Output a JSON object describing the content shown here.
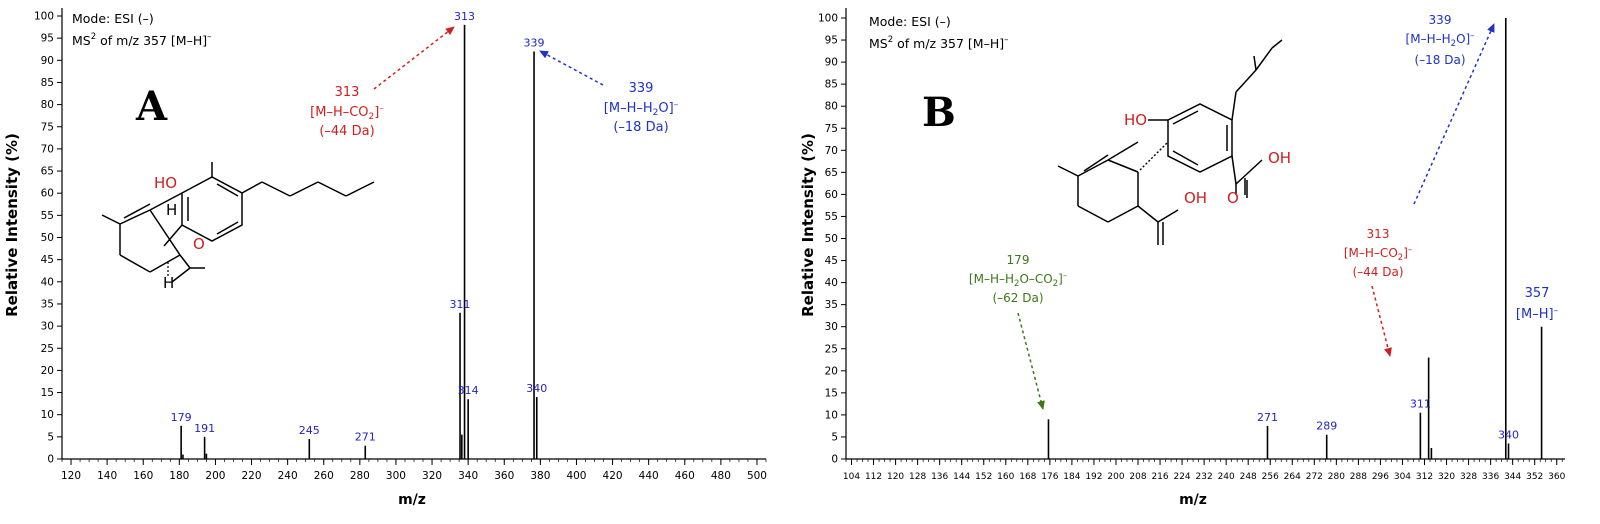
{
  "colors": {
    "axis": "#000000",
    "peak": "#000000",
    "peak_label": "#2323c8",
    "red": "#d21e1e",
    "blue": "#1e32c8",
    "green": "#3c7814"
  },
  "chart_data": [
    {
      "type": "bar",
      "panel_letter": "A",
      "ylabel": "Relative Intensity (%)",
      "xlabel": "m/z",
      "mode_label": "Mode: ESI (–)",
      "ms2_label": {
        "prefix": "MS",
        "sup": "2",
        "main": " of m/z  357 [M–H]",
        "sup2": "–"
      },
      "xlim": [
        115,
        505
      ],
      "ylim": [
        0,
        100
      ],
      "xticks": [
        120,
        140,
        160,
        180,
        200,
        220,
        240,
        260,
        280,
        300,
        320,
        340,
        360,
        380,
        400,
        420,
        440,
        460,
        480,
        500
      ],
      "yticks": [
        0,
        5,
        10,
        15,
        20,
        25,
        30,
        35,
        40,
        45,
        50,
        55,
        60,
        65,
        70,
        75,
        80,
        85,
        90,
        95,
        100
      ],
      "peaks": [
        {
          "mz": 181,
          "y": 7.5,
          "label": "179"
        },
        {
          "mz": 182,
          "y": 1.0,
          "label": ""
        },
        {
          "mz": 194,
          "y": 5.0,
          "label": "191"
        },
        {
          "mz": 195,
          "y": 1.2,
          "label": ""
        },
        {
          "mz": 252,
          "y": 4.5,
          "label": "245"
        },
        {
          "mz": 283,
          "y": 3.0,
          "label": "271"
        },
        {
          "mz": 335.5,
          "y": 33.0,
          "label": "311"
        },
        {
          "mz": 336.5,
          "y": 5.5,
          "label": ""
        },
        {
          "mz": 338,
          "y": 98.0,
          "label": "313"
        },
        {
          "mz": 340,
          "y": 13.5,
          "label": "314"
        },
        {
          "mz": 376.5,
          "y": 92.0,
          "label": "339"
        },
        {
          "mz": 378,
          "y": 14.0,
          "label": "340"
        }
      ],
      "annotations": [
        {
          "color": "red",
          "lines": [
            "313",
            "[M–H–CO2]–",
            "(–44 Da)"
          ]
        },
        {
          "color": "blue",
          "lines": [
            "339",
            "[M–H–H2O]–",
            "(–18 Da)"
          ]
        }
      ],
      "structure_labels": [
        "HO",
        "H",
        "O",
        "H"
      ]
    },
    {
      "type": "bar",
      "panel_letter": "B",
      "ylabel": "Relative Intensity (%)",
      "xlabel": "m/z",
      "mode_label": "Mode: ESI (–)",
      "ms2_label": {
        "prefix": "MS",
        "sup": "2",
        "main": " of m/z  357 [M–H]",
        "sup2": "–"
      },
      "xlim": [
        102,
        363
      ],
      "ylim": [
        0,
        100
      ],
      "xticks": [
        104,
        112,
        120,
        128,
        136,
        144,
        152,
        160,
        168,
        176,
        184,
        192,
        200,
        208,
        216,
        224,
        232,
        240,
        248,
        256,
        264,
        272,
        280,
        288,
        296,
        304,
        312,
        320,
        328,
        336,
        344,
        352,
        360
      ],
      "yticks": [
        0,
        5,
        10,
        15,
        20,
        25,
        30,
        35,
        40,
        45,
        50,
        55,
        60,
        65,
        70,
        75,
        80,
        85,
        90,
        95,
        100
      ],
      "peaks": [
        {
          "mz": 175.5,
          "y": 9.0,
          "label": ""
        },
        {
          "mz": 255,
          "y": 7.5,
          "label": "271"
        },
        {
          "mz": 276.5,
          "y": 5.5,
          "label": "289"
        },
        {
          "mz": 310.5,
          "y": 10.5,
          "label": "311"
        },
        {
          "mz": 313.5,
          "y": 23.0,
          "label": ""
        },
        {
          "mz": 314.5,
          "y": 2.5,
          "label": ""
        },
        {
          "mz": 341.5,
          "y": 100.0,
          "label": ""
        },
        {
          "mz": 342.5,
          "y": 3.5,
          "label": "340"
        },
        {
          "mz": 354.5,
          "y": 30.0,
          "label": ""
        }
      ],
      "annotations": [
        {
          "color": "green",
          "lines": [
            "179",
            "[M–H–H2O–CO2]–",
            "(–62 Da)"
          ]
        },
        {
          "color": "red",
          "lines": [
            "313",
            "[M–H–CO2]–",
            "(–44 Da)"
          ]
        },
        {
          "color": "blue",
          "lines": [
            "339",
            "[M–H–H2O]–",
            "(–18 Da)"
          ]
        },
        {
          "color": "blue",
          "lines": [
            "357",
            "[M–H]–"
          ]
        }
      ],
      "structure_labels": [
        "HO",
        "OH",
        "OH",
        "O"
      ]
    }
  ]
}
